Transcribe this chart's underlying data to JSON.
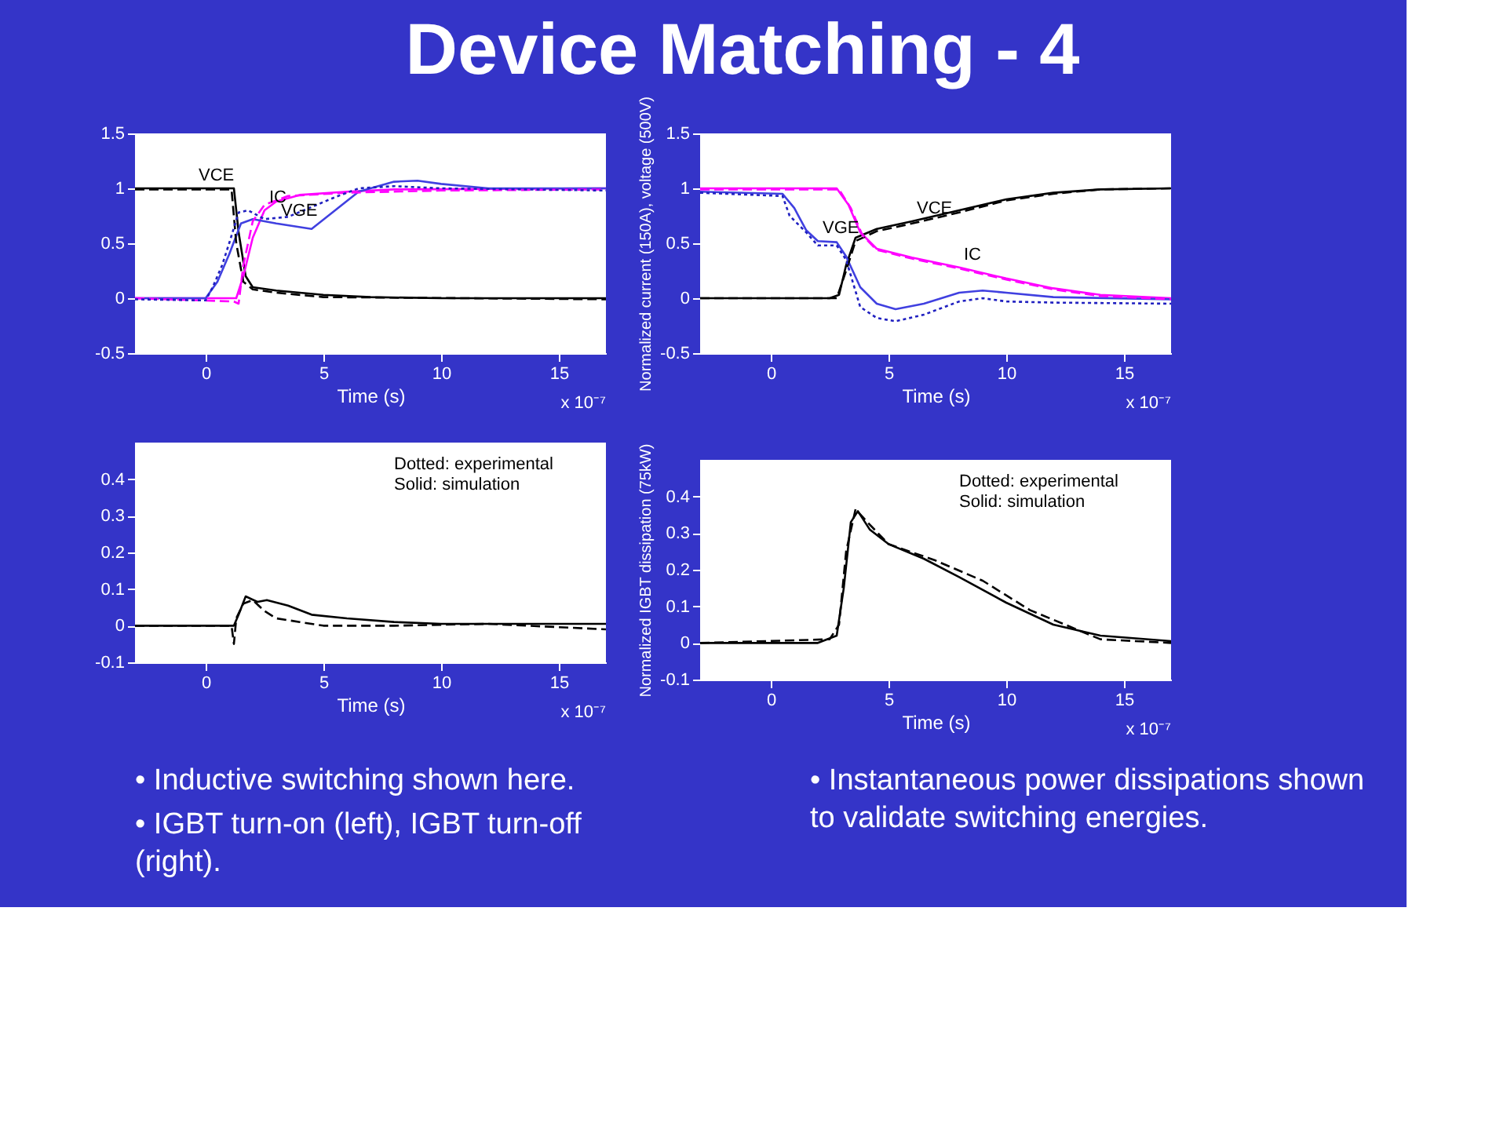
{
  "chart_data": [
    {
      "type": "line",
      "title": "Device Matching - 4",
      "xlabel": "Time (s)",
      "xlim": [
        -3,
        17
      ],
      "xticks": [
        0,
        5,
        10,
        15
      ],
      "ylim": [
        -0.5,
        1.5
      ],
      "yticks": [
        -0.5,
        0,
        0.5,
        1,
        1.5
      ],
      "grid": false,
      "legend": false,
      "series": [
        {
          "color": "#000000",
          "line_style": "solid",
          "x": [
            -3,
            1.2,
            1.4,
            1.7,
            2,
            3,
            5,
            7,
            10,
            17
          ],
          "values": [
            1,
            1,
            0.6,
            0.2,
            0.1,
            0.07,
            0.03,
            0.01,
            0,
            0
          ]
        },
        {
          "color": "#000000",
          "line_style": "dashed",
          "x": [
            -3,
            1.1,
            1.3,
            1.6,
            2,
            3,
            5,
            17
          ],
          "values": [
            0.99,
            0.99,
            0.5,
            0.15,
            0.08,
            0.05,
            0.01,
            -0.01
          ]
        },
        {
          "color": "#ff00ff",
          "line_style": "solid",
          "x": [
            -3,
            1.3,
            1.6,
            2,
            2.5,
            3,
            4,
            6,
            8,
            17
          ],
          "values": [
            0,
            0,
            0.2,
            0.55,
            0.8,
            0.88,
            0.94,
            0.97,
            0.99,
            1
          ]
        },
        {
          "color": "#ff00ff",
          "line_style": "dashed",
          "x": [
            -3,
            1.2,
            1.4,
            1.6,
            2,
            2.5,
            3.5,
            6,
            10,
            17
          ],
          "values": [
            0,
            -0.03,
            -0.05,
            0.3,
            0.7,
            0.85,
            0.93,
            0.96,
            0.98,
            0.99
          ]
        },
        {
          "color": "#4040e0",
          "line_style": "solid",
          "x": [
            -3,
            0,
            0.5,
            1,
            1.5,
            2,
            3,
            4.5,
            5.5,
            6.5,
            8,
            9,
            10,
            12,
            17
          ],
          "values": [
            0,
            0,
            0.15,
            0.4,
            0.68,
            0.72,
            0.68,
            0.63,
            0.8,
            0.97,
            1.06,
            1.07,
            1.04,
            1,
            1
          ]
        },
        {
          "color": "#2020c0",
          "line_style": "dotted",
          "x": [
            -3,
            0,
            0.3,
            0.7,
            1,
            1.4,
            1.8,
            2.5,
            3.5,
            4.5,
            5.5,
            6.5,
            8,
            10,
            17
          ],
          "values": [
            -0.01,
            -0.02,
            0.1,
            0.3,
            0.5,
            0.78,
            0.8,
            0.72,
            0.74,
            0.83,
            0.92,
            1,
            1.02,
            1,
            0.98
          ]
        }
      ],
      "annotations": [
        "x 10⁻⁷",
        {
          "text": "VCE",
          "x": -0.5,
          "y": 1
        },
        {
          "text": "IC",
          "x": 2.5,
          "y": 0.8
        },
        {
          "text": "VGE",
          "x": 3,
          "y": 0.68
        }
      ]
    },
    {
      "type": "line",
      "xlabel": "Time (s)",
      "ylabel": "Normalized current (150A), voltage (500V)",
      "xlim": [
        -3,
        17
      ],
      "xticks": [
        0,
        5,
        10,
        15
      ],
      "ylim": [
        -0.5,
        1.5
      ],
      "yticks": [
        -0.5,
        0,
        0.5,
        1,
        1.5
      ],
      "grid": false,
      "legend": false,
      "series": [
        {
          "color": "#000000",
          "line_style": "solid",
          "x": [
            -3,
            2.5,
            2.9,
            3.2,
            3.6,
            4.5,
            6,
            8,
            10,
            12,
            14,
            17
          ],
          "values": [
            0,
            0,
            0.03,
            0.3,
            0.55,
            0.63,
            0.7,
            0.8,
            0.9,
            0.96,
            0.99,
            1
          ]
        },
        {
          "color": "#000000",
          "line_style": "dashed",
          "x": [
            -3,
            2.8,
            3.2,
            3.6,
            4.5,
            6,
            8,
            10,
            12,
            14,
            17
          ],
          "values": [
            0,
            0,
            0.25,
            0.52,
            0.61,
            0.68,
            0.78,
            0.89,
            0.95,
            0.99,
            1
          ]
        },
        {
          "color": "#ff00ff",
          "line_style": "solid",
          "x": [
            -3,
            2.8,
            3.3,
            3.8,
            4.5,
            6,
            8,
            10,
            12,
            14,
            17
          ],
          "values": [
            1,
            1,
            0.85,
            0.6,
            0.45,
            0.37,
            0.28,
            0.18,
            0.09,
            0.03,
            0
          ]
        },
        {
          "color": "#ff00ff",
          "line_style": "dashed",
          "x": [
            -3,
            2.9,
            3.4,
            3.9,
            4.5,
            6,
            8,
            10,
            12,
            14,
            17
          ],
          "values": [
            0.99,
            0.99,
            0.82,
            0.57,
            0.44,
            0.36,
            0.27,
            0.17,
            0.08,
            0.02,
            -0.01
          ]
        },
        {
          "color": "#4040e0",
          "line_style": "solid",
          "x": [
            -3,
            0.5,
            1,
            1.5,
            2,
            2.8,
            3.2,
            3.8,
            4.5,
            5.3,
            6.5,
            8,
            9,
            10,
            12,
            17
          ],
          "values": [
            0.97,
            0.95,
            0.82,
            0.62,
            0.52,
            0.51,
            0.38,
            0.1,
            -0.05,
            -0.1,
            -0.05,
            0.05,
            0.07,
            0.05,
            0.01,
            -0.01
          ]
        },
        {
          "color": "#2020c0",
          "line_style": "dotted",
          "x": [
            -3,
            0.5,
            0.8,
            1.5,
            2,
            2.8,
            3.2,
            3.8,
            4.5,
            5.3,
            6.5,
            8,
            9,
            10,
            12,
            17
          ],
          "values": [
            0.96,
            0.93,
            0.75,
            0.6,
            0.48,
            0.48,
            0.35,
            -0.08,
            -0.18,
            -0.21,
            -0.15,
            -0.03,
            0,
            -0.03,
            -0.04,
            -0.05
          ]
        }
      ],
      "annotations": [
        "x 10⁻⁷",
        {
          "text": "VCE",
          "x": 6,
          "y": 0.7
        },
        {
          "text": "VGE",
          "x": 2,
          "y": 0.52
        },
        {
          "text": "IC",
          "x": 8,
          "y": 0.28
        }
      ]
    },
    {
      "type": "line",
      "xlabel": "Time (s)",
      "xlim": [
        -3,
        17
      ],
      "xticks": [
        0,
        5,
        10,
        15
      ],
      "ylim": [
        -0.1,
        0.5
      ],
      "yticks": [
        -0.1,
        0,
        0.1,
        0.2,
        0.3,
        0.4
      ],
      "grid": false,
      "legend": false,
      "series": [
        {
          "color": "#000000",
          "line_style": "solid",
          "x": [
            -3,
            1.2,
            1.4,
            1.7,
            2.2,
            2.6,
            3.5,
            4.5,
            6,
            8,
            10,
            17
          ],
          "values": [
            0,
            0,
            0.03,
            0.08,
            0.065,
            0.07,
            0.055,
            0.03,
            0.02,
            0.01,
            0.005,
            0.005
          ]
        },
        {
          "color": "#000000",
          "line_style": "dashed",
          "x": [
            -3,
            1.1,
            1.2,
            1.3,
            1.6,
            2,
            2.5,
            3,
            4,
            5,
            8,
            12,
            17
          ],
          "values": [
            0,
            0,
            -0.05,
            0.02,
            0.06,
            0.07,
            0.04,
            0.02,
            0.01,
            0,
            0,
            0.005,
            -0.01
          ]
        }
      ],
      "annotations": [
        "x 10⁻⁷",
        "Dotted: experimental",
        "Solid: simulation"
      ]
    },
    {
      "type": "line",
      "xlabel": "Time (s)",
      "ylabel": "Normalized IGBT dissipation (75kW)",
      "xlim": [
        -3,
        17
      ],
      "xticks": [
        0,
        5,
        10,
        15
      ],
      "ylim": [
        -0.1,
        0.5
      ],
      "yticks": [
        -0.1,
        0,
        0.1,
        0.2,
        0.3,
        0.4
      ],
      "grid": false,
      "legend": false,
      "series": [
        {
          "color": "#000000",
          "line_style": "solid",
          "x": [
            -3,
            2,
            2.8,
            3.1,
            3.4,
            3.7,
            4.2,
            5,
            6.5,
            8,
            10,
            12,
            14,
            17
          ],
          "values": [
            0,
            0,
            0.02,
            0.15,
            0.33,
            0.36,
            0.31,
            0.27,
            0.23,
            0.18,
            0.11,
            0.05,
            0.02,
            0.005
          ]
        },
        {
          "color": "#000000",
          "line_style": "dashed",
          "x": [
            -3,
            2.5,
            2.9,
            3.2,
            3.6,
            4.1,
            5,
            7,
            9,
            11,
            12.5,
            14,
            17
          ],
          "values": [
            0,
            0.01,
            0.05,
            0.25,
            0.365,
            0.33,
            0.27,
            0.225,
            0.17,
            0.09,
            0.05,
            0.01,
            0
          ]
        }
      ],
      "annotations": [
        "x 10⁻⁷",
        "Dotted: experimental",
        "Solid: simulation"
      ]
    },
    {
      "type": "other",
      "annotations": [
        "• Inductive switching shown here.",
        "• IGBT turn-on (left), IGBT turn-off (right)."
      ]
    },
    {
      "type": "other",
      "annotations": [
        "• Instantaneous power dissipations shown to validate switching energies."
      ]
    }
  ]
}
